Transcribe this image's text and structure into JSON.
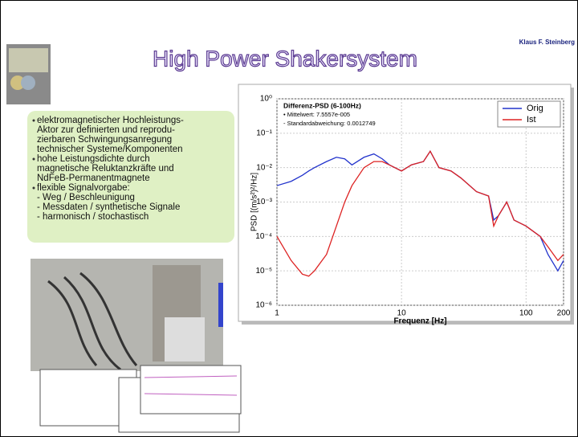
{
  "header": {
    "title": "High Power Shakersystem",
    "author": "Klaus F. Steinberg"
  },
  "bullets": [
    {
      "lines": [
        "elektromagnetischer Hochleistungs-",
        "Aktor zur definierten und reprodu-",
        "zierbaren Schwingungsanregung",
        "technischer Systeme/Komponenten"
      ]
    },
    {
      "lines": [
        "hohe Leistungsdichte durch",
        "magnetische Reluktanzkräfte und",
        "NdFeB-Permanentmagnete"
      ]
    },
    {
      "lines": [
        "flexible Signalvorgabe:",
        "- Weg / Beschleunigung",
        "- Messdaten / synthetische Signale",
        "- harmonisch / stochastisch"
      ]
    }
  ],
  "chart_data": {
    "type": "line",
    "annotations": [
      "Differenz-PSD (6-100Hz)",
      "• Mittelwert: 7.5557e-005",
      "- Standardabweichung: 0.0012749"
    ],
    "x_label": "Frequenz [Hz]",
    "y_label": "PSD [(m/s²)²/Hz]",
    "x": [
      1,
      1.3,
      1.6,
      1.8,
      2,
      2.5,
      3,
      3.5,
      4,
      5,
      6,
      7,
      8,
      10,
      12,
      15,
      17,
      20,
      25,
      30,
      40,
      50,
      55,
      60,
      70,
      80,
      100,
      130,
      150,
      180,
      200
    ],
    "series": [
      {
        "name": "Orig",
        "color": "#2233cc",
        "values": [
          0.003,
          0.004,
          0.006,
          0.008,
          0.01,
          0.015,
          0.02,
          0.018,
          0.012,
          0.02,
          0.025,
          0.018,
          0.012,
          0.008,
          0.012,
          0.015,
          0.03,
          0.01,
          0.008,
          0.005,
          0.002,
          0.0015,
          0.0003,
          0.0004,
          0.001,
          0.0003,
          0.0002,
          0.0001,
          3e-05,
          1e-05,
          2e-05
        ]
      },
      {
        "name": "Ist",
        "color": "#dd2222",
        "values": [
          0.0001,
          2e-05,
          8e-06,
          7e-06,
          1e-05,
          3e-05,
          0.0002,
          0.001,
          0.003,
          0.01,
          0.015,
          0.015,
          0.012,
          0.008,
          0.012,
          0.015,
          0.03,
          0.01,
          0.008,
          0.005,
          0.002,
          0.0015,
          0.0002,
          0.0004,
          0.001,
          0.0003,
          0.0002,
          0.0001,
          5e-05,
          2e-05,
          3e-05
        ]
      }
    ],
    "xlim": [
      1,
      200
    ],
    "ylim": [
      1e-06,
      1
    ],
    "xticks": [
      1,
      10,
      100,
      200
    ],
    "yticks": [
      {
        "value": 1,
        "label": "10⁰"
      },
      {
        "value": 0.1,
        "label": "10⁻¹"
      },
      {
        "value": 0.01,
        "label": "10⁻²"
      },
      {
        "value": 0.001,
        "label": "10⁻³"
      },
      {
        "value": 0.0001,
        "label": "10⁻⁴"
      },
      {
        "value": 1e-05,
        "label": "10⁻⁵"
      },
      {
        "value": 1e-06,
        "label": "10⁻⁶"
      }
    ],
    "log_x": true,
    "log_y": true,
    "grid": true,
    "legend": "upper right"
  }
}
